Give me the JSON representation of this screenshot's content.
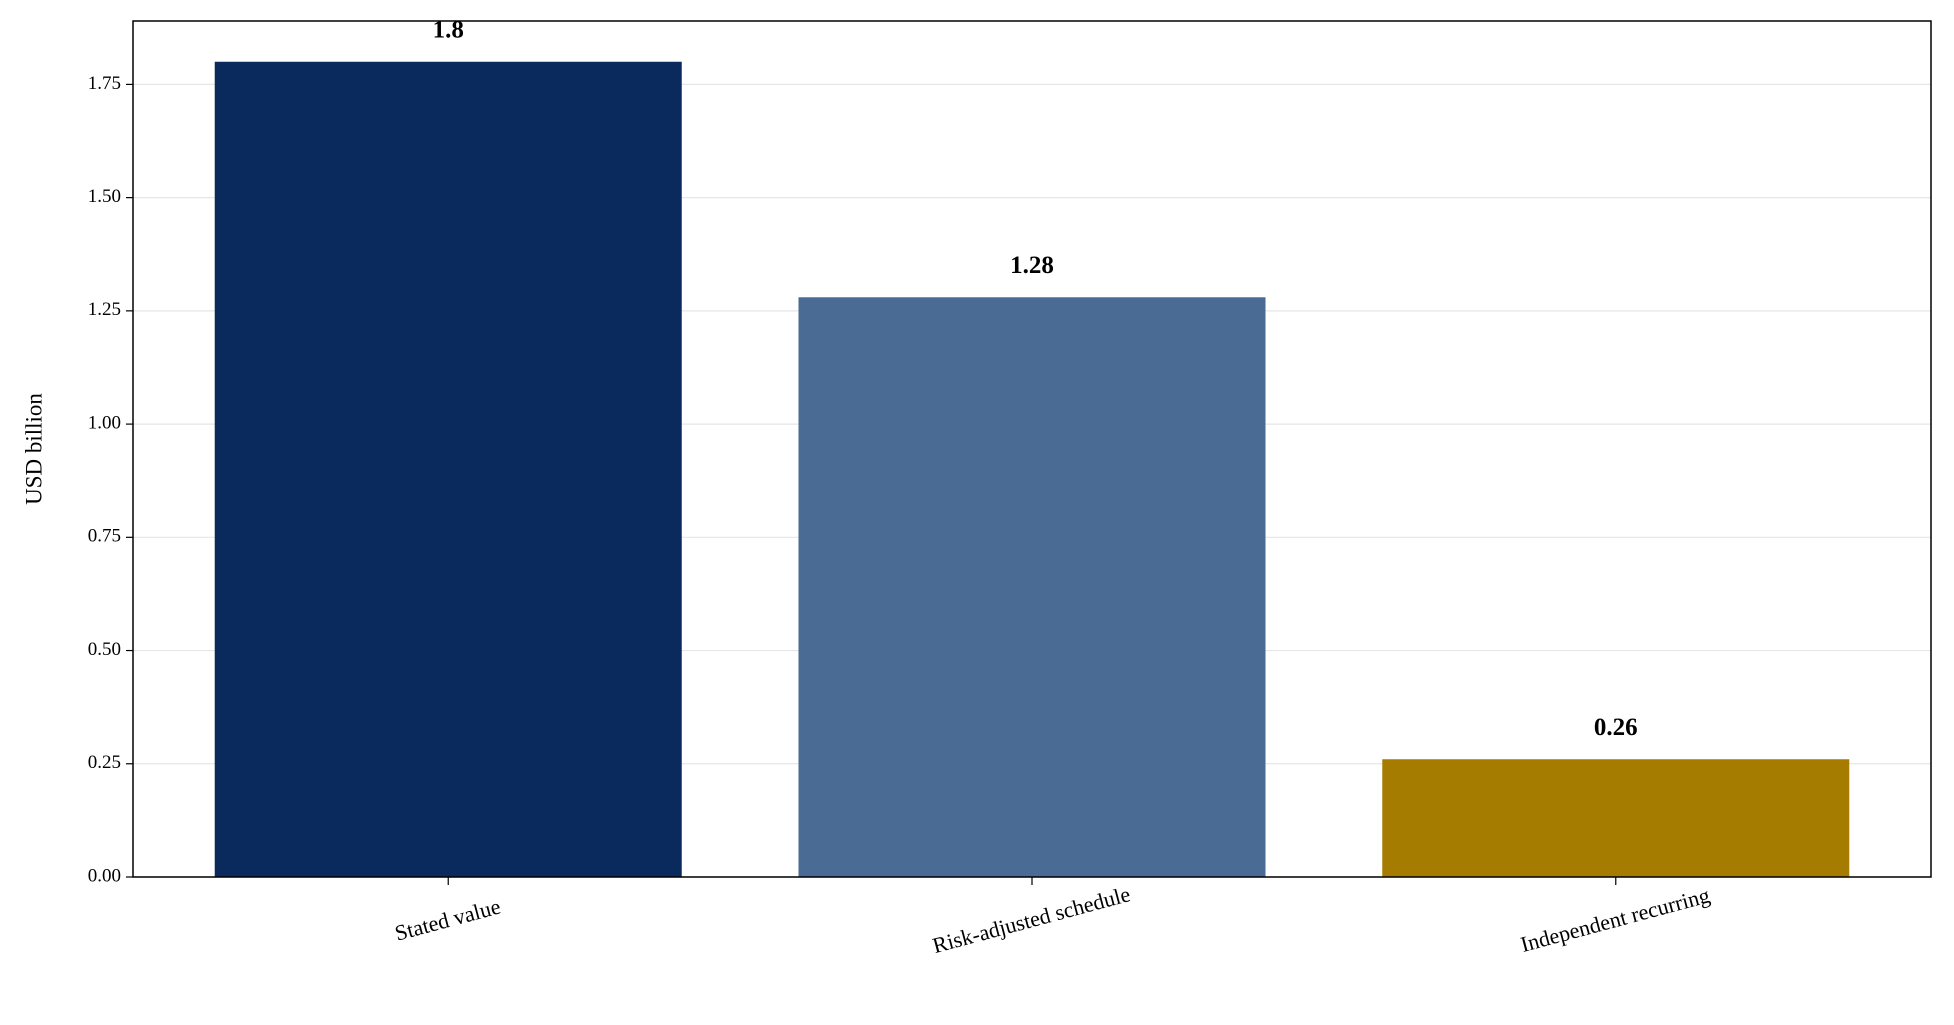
{
  "chart_data": {
    "type": "bar",
    "y_label": "USD billion",
    "categories": [
      "Stated value",
      "Risk-adjusted schedule",
      "Independent recurring"
    ],
    "values": [
      1.8,
      1.28,
      0.26
    ],
    "colors": [
      "#0a2a5e",
      "#4a6b93",
      "#a67c00"
    ],
    "ylim": [
      0,
      1.89
    ],
    "yticks": [
      {
        "value": 0,
        "label": "0.00"
      },
      0.25,
      {
        "value": 0.5,
        "label": "0.50"
      },
      0.75,
      {
        "value": 1,
        "label": "1.00"
      },
      1.25,
      {
        "value": 1.5,
        "label": "1.50"
      },
      1.75
    ],
    "grid": true
  }
}
